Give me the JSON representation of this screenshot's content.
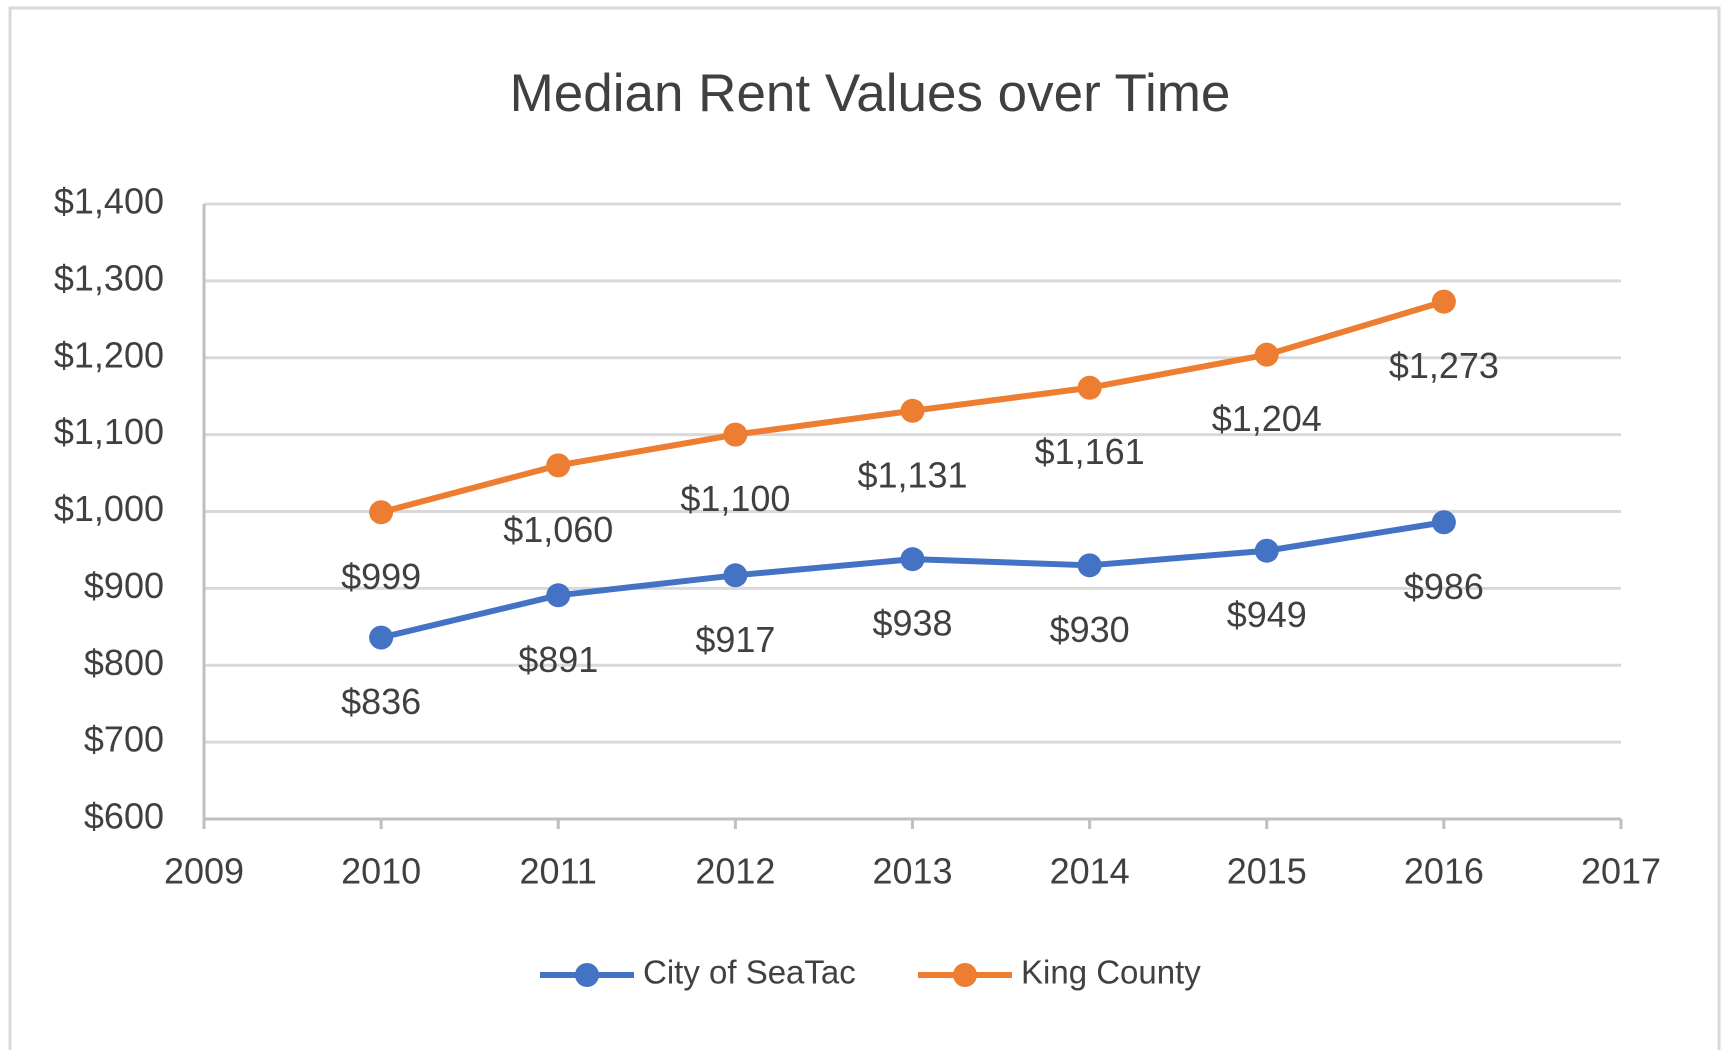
{
  "chart_data": {
    "type": "line",
    "title": "Median Rent Values over Time",
    "x": [
      2010,
      2011,
      2012,
      2013,
      2014,
      2015,
      2016
    ],
    "series": [
      {
        "name": "City of SeaTac",
        "color": "#4472c4",
        "values": [
          836,
          891,
          917,
          938,
          930,
          949,
          986
        ],
        "value_labels": [
          "$836",
          "$891",
          "$917",
          "$938",
          "$930",
          "$949",
          "$986"
        ]
      },
      {
        "name": "King County",
        "color": "#ed7d31",
        "values": [
          999,
          1060,
          1100,
          1131,
          1161,
          1204,
          1273
        ],
        "value_labels": [
          "$999",
          "$1,060",
          "$1,100",
          "$1,131",
          "$1,161",
          "$1,204",
          "$1,273"
        ]
      }
    ],
    "xlim": [
      2009,
      2017
    ],
    "xticks": [
      2009,
      2010,
      2011,
      2012,
      2013,
      2014,
      2015,
      2016,
      2017
    ],
    "ylim": [
      600,
      1400
    ],
    "yticks": [
      {
        "value": 600,
        "label": "$600"
      },
      {
        "value": 700,
        "label": "$700"
      },
      {
        "value": 800,
        "label": "$800"
      },
      {
        "value": 900,
        "label": "$900"
      },
      {
        "value": 1000,
        "label": "$1,000"
      },
      {
        "value": 1100,
        "label": "$1,100"
      },
      {
        "value": 1200,
        "label": "$1,200"
      },
      {
        "value": 1300,
        "label": "$1,300"
      },
      {
        "value": 1400,
        "label": "$1,400"
      }
    ],
    "grid": true,
    "legend": "bottom"
  }
}
